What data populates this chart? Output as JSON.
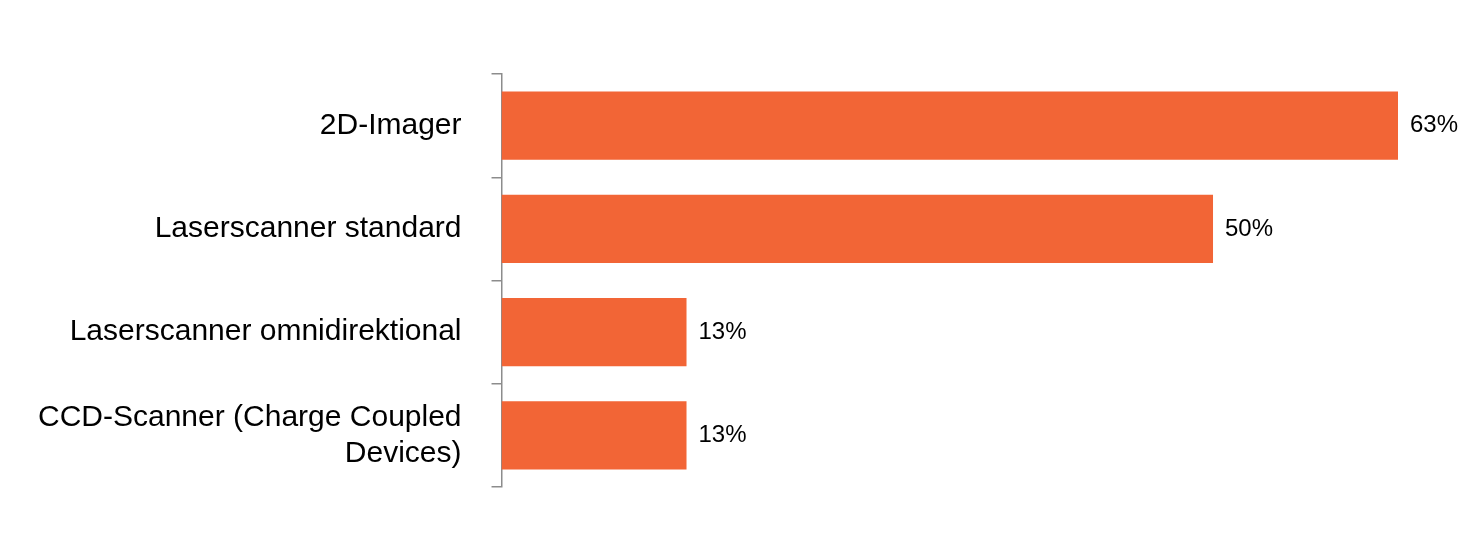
{
  "chart_data": {
    "type": "bar",
    "orientation": "horizontal",
    "categories": [
      "2D-Imager",
      "Laserscanner standard",
      "Laserscanner omnidirektional",
      "CCD-Scanner (Charge Coupled Devices)"
    ],
    "values": [
      63,
      50,
      13,
      13
    ],
    "value_labels": [
      "63%",
      "50%",
      "13%",
      "13%"
    ],
    "color": "#f26536",
    "tick_labels": "y"
  }
}
